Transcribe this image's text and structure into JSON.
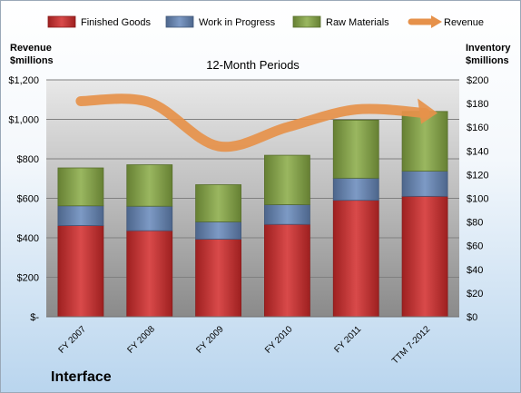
{
  "chart_data": {
    "type": "bar",
    "stacked": true,
    "title": "12-Month Periods",
    "categories": [
      "FY 2007",
      "FY 2008",
      "FY 2009",
      "FY 2010",
      "FY 2011",
      "TTM 7-2012"
    ],
    "series": [
      {
        "name": "Finished Goods",
        "color": "#d22a2a",
        "axis": "left",
        "values": [
          462,
          436,
          393,
          468,
          590,
          610
        ]
      },
      {
        "name": "Work in Progress",
        "color": "#6688bb",
        "axis": "left",
        "values": [
          100,
          124,
          88,
          100,
          112,
          128
        ]
      },
      {
        "name": "Raw Materials",
        "color": "#88aa44",
        "axis": "left",
        "values": [
          192,
          210,
          188,
          250,
          294,
          302
        ]
      },
      {
        "name": "Revenue",
        "type": "line",
        "color": "#e6914a",
        "axis": "right",
        "values": [
          182,
          181,
          144,
          160,
          175,
          172
        ]
      }
    ],
    "left_axis": {
      "label_line1": "Revenue",
      "label_line2": "$millions",
      "range": [
        0,
        1200
      ],
      "ticks": [
        "$-",
        "$200",
        "$400",
        "$600",
        "$800",
        "$1,000",
        "$1,200"
      ]
    },
    "right_axis": {
      "label_line1": "Inventory",
      "label_line2": "$millions",
      "range": [
        0,
        200
      ],
      "ticks": [
        "$0",
        "$20",
        "$40",
        "$60",
        "$80",
        "$100",
        "$120",
        "$140",
        "$160",
        "$180",
        "$200"
      ]
    },
    "legend_position": "top",
    "grid": true
  },
  "company": "Interface"
}
